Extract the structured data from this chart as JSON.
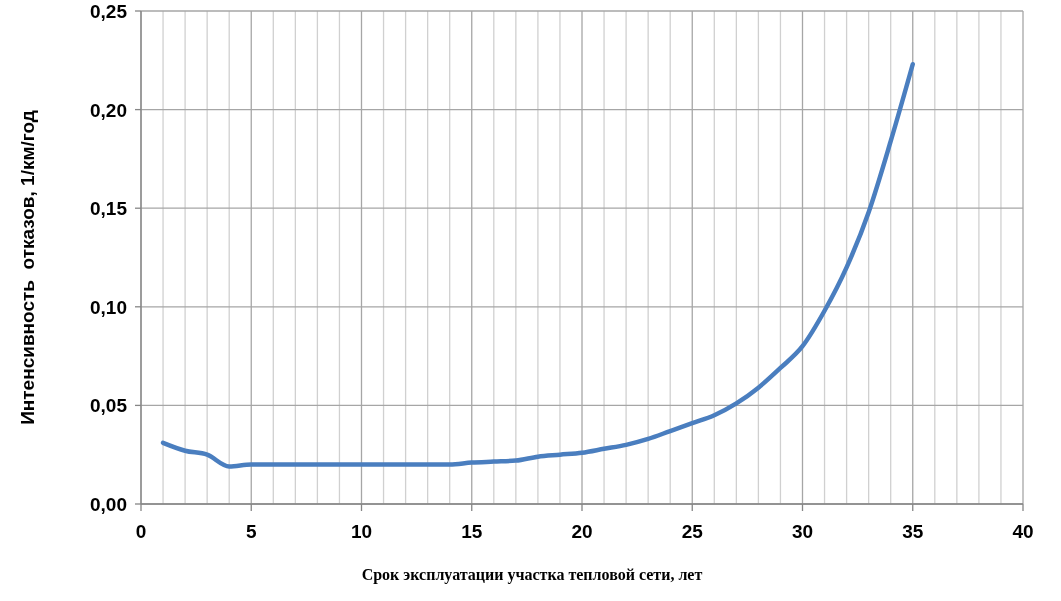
{
  "chart_data": {
    "type": "line",
    "xlabel": "Срок эксплуатации участка тепловой сети, лет",
    "ylabel": "Интенсивность  отказов, 1/км/год",
    "x": [
      1,
      2,
      3,
      4,
      5,
      6,
      7,
      8,
      9,
      10,
      11,
      12,
      13,
      14,
      15,
      16,
      17,
      18,
      19,
      20,
      21,
      22,
      23,
      24,
      25,
      26,
      27,
      28,
      29,
      30,
      31,
      32,
      33,
      34,
      35
    ],
    "series": [
      {
        "color": "#4a7ebf",
        "values": [
          0.031,
          0.027,
          0.025,
          0.019,
          0.02,
          0.02,
          0.02,
          0.02,
          0.02,
          0.02,
          0.02,
          0.02,
          0.02,
          0.02,
          0.021,
          0.0215,
          0.022,
          0.024,
          0.025,
          0.026,
          0.028,
          0.03,
          0.033,
          0.037,
          0.041,
          0.045,
          0.051,
          0.059,
          0.069,
          0.08,
          0.098,
          0.12,
          0.148,
          0.184,
          0.223
        ]
      }
    ],
    "xlim": [
      0,
      40
    ],
    "xticks": [
      0,
      {
        "value": 1,
        "label": null
      },
      {
        "value": 2,
        "label": null
      },
      {
        "value": 3,
        "label": null
      },
      {
        "value": 4,
        "label": null
      },
      5,
      {
        "value": 6,
        "label": null
      },
      {
        "value": 7,
        "label": null
      },
      {
        "value": 8,
        "label": null
      },
      {
        "value": 9,
        "label": null
      },
      10,
      {
        "value": 11,
        "label": null
      },
      {
        "value": 12,
        "label": null
      },
      {
        "value": 13,
        "label": null
      },
      {
        "value": 14,
        "label": null
      },
      15,
      {
        "value": 16,
        "label": null
      },
      {
        "value": 17,
        "label": null
      },
      {
        "value": 18,
        "label": null
      },
      {
        "value": 19,
        "label": null
      },
      20,
      {
        "value": 21,
        "label": null
      },
      {
        "value": 22,
        "label": null
      },
      {
        "value": 23,
        "label": null
      },
      {
        "value": 24,
        "label": null
      },
      25,
      {
        "value": 26,
        "label": null
      },
      {
        "value": 27,
        "label": null
      },
      {
        "value": 28,
        "label": null
      },
      {
        "value": 29,
        "label": null
      },
      30,
      {
        "value": 31,
        "label": null
      },
      {
        "value": 32,
        "label": null
      },
      {
        "value": 33,
        "label": null
      },
      {
        "value": 34,
        "label": null
      },
      35,
      {
        "value": 36,
        "label": null
      },
      {
        "value": 37,
        "label": null
      },
      {
        "value": 38,
        "label": null
      },
      {
        "value": 39,
        "label": null
      },
      40
    ],
    "ylim": [
      0,
      0.25
    ],
    "yticks": [
      {
        "value": 0,
        "label": "0,00"
      },
      {
        "value": 0.05,
        "label": "0,05"
      },
      {
        "value": 0.1,
        "label": "0,10"
      },
      {
        "value": 0.15,
        "label": "0,15"
      },
      {
        "value": 0.2,
        "label": "0,20"
      },
      {
        "value": 0.25,
        "label": "0,25"
      }
    ],
    "grid": true,
    "marker": "none",
    "line_style": "solid"
  }
}
